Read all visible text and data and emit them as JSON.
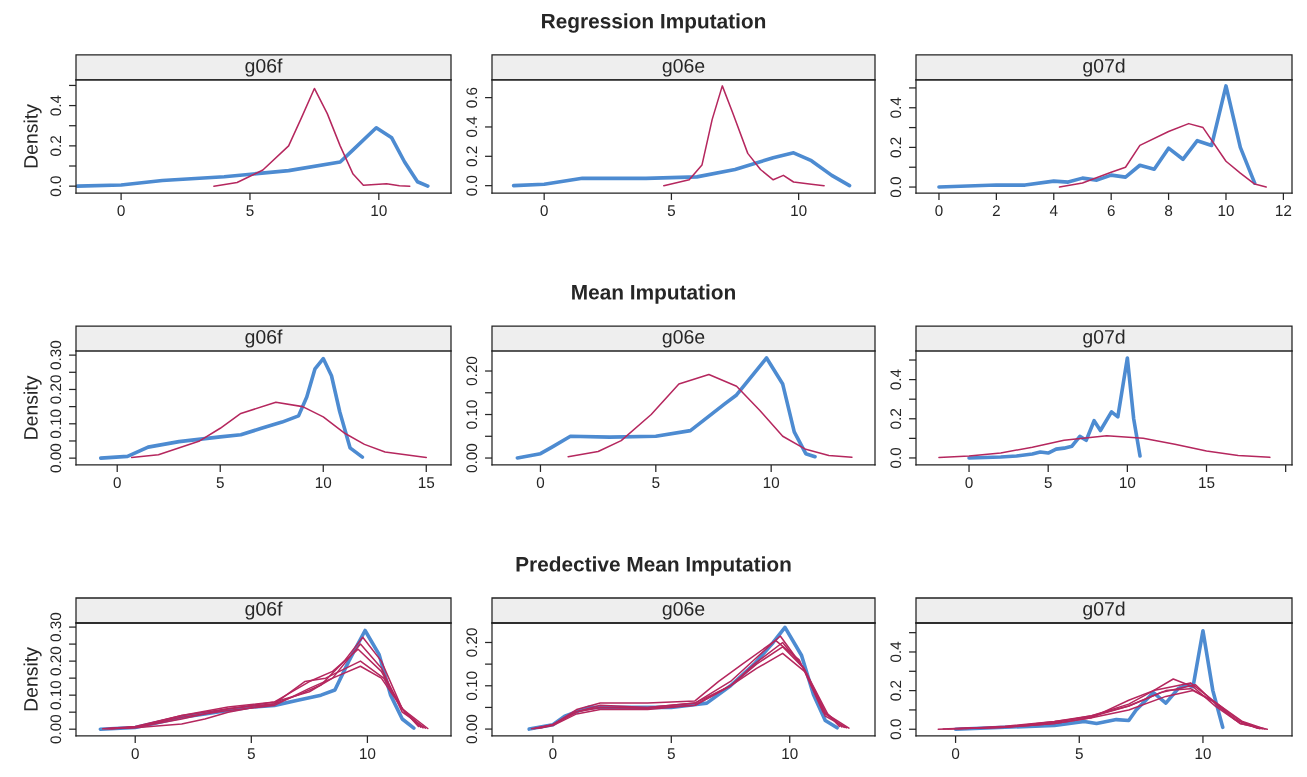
{
  "chart_data": [
    {
      "type": "line",
      "title": "g06f",
      "ylabel": "Density",
      "xlim": [
        -1.75,
        12.8
      ],
      "ylim": [
        -0.034,
        0.527
      ],
      "xticks": [
        0,
        5,
        10
      ],
      "yticks": [
        {
          "value": 0,
          "label": "0.0"
        },
        {
          "value": 0.1,
          "label": null
        },
        0.2,
        {
          "value": 0.3,
          "label": null
        },
        0.4,
        {
          "value": 0.5,
          "label": null
        }
      ],
      "series": [
        {
          "color": "#4d8bd1",
          "x": [
            -1.7,
            0,
            1.6,
            4,
            6.5,
            8.5,
            9,
            9.9,
            10.5,
            11,
            11.5,
            11.9
          ],
          "values": [
            0,
            0.006,
            0.028,
            0.047,
            0.077,
            0.12,
            0.18,
            0.29,
            0.24,
            0.12,
            0.022,
            0
          ]
        },
        {
          "color": "#b5275e",
          "x": [
            3.6,
            4.5,
            5.5,
            6.5,
            7,
            7.5,
            8,
            8.5,
            9,
            9.4,
            10.3,
            10.8,
            11.2
          ],
          "values": [
            0,
            0.018,
            0.08,
            0.2,
            0.34,
            0.485,
            0.36,
            0.2,
            0.06,
            0.004,
            0.012,
            0.002,
            0
          ]
        }
      ]
    },
    {
      "type": "line",
      "subtitle": "Regression Imputation",
      "title": "g06e",
      "xlim": [
        -2.05,
        13.0
      ],
      "ylim": [
        -0.05,
        0.72
      ],
      "xticks": [
        0,
        5,
        10
      ],
      "yticks": [
        {
          "value": 0,
          "label": "0.0"
        },
        0.2,
        0.4,
        0.6
      ],
      "series": [
        {
          "color": "#4d8bd1",
          "x": [
            -1.2,
            0,
            1.5,
            4,
            6,
            7.5,
            9,
            9.8,
            10.5,
            11.3,
            12
          ],
          "values": [
            0,
            0.01,
            0.05,
            0.05,
            0.06,
            0.11,
            0.19,
            0.224,
            0.17,
            0.07,
            0
          ]
        },
        {
          "color": "#b5275e",
          "x": [
            4.7,
            5.7,
            6.2,
            6.6,
            7,
            7.4,
            8,
            8.5,
            9,
            9.4,
            9.8,
            10.5,
            11
          ],
          "values": [
            0,
            0.04,
            0.14,
            0.45,
            0.68,
            0.5,
            0.22,
            0.11,
            0.04,
            0.07,
            0.025,
            0.01,
            0
          ]
        }
      ]
    },
    {
      "type": "line",
      "title": "g07d",
      "xlim": [
        -0.8,
        12.3
      ],
      "ylim": [
        -0.03,
        0.54
      ],
      "xticks": [
        0,
        2,
        4,
        6,
        8,
        10,
        12
      ],
      "yticks": [
        {
          "value": 0,
          "label": "0.0"
        },
        {
          "value": 0.1,
          "label": null
        },
        0.2,
        {
          "value": 0.3,
          "label": null
        },
        0.4,
        {
          "value": 0.5,
          "label": null
        }
      ],
      "series": [
        {
          "color": "#4d8bd1",
          "x": [
            0,
            2,
            3,
            4,
            4.5,
            5,
            5.5,
            6,
            6.5,
            7,
            7.5,
            8,
            8.5,
            9,
            9.5,
            10,
            10.5,
            11
          ],
          "values": [
            0,
            0.01,
            0.01,
            0.03,
            0.025,
            0.045,
            0.035,
            0.06,
            0.05,
            0.11,
            0.09,
            0.196,
            0.14,
            0.234,
            0.21,
            0.51,
            0.2,
            0.02
          ]
        },
        {
          "color": "#b5275e",
          "x": [
            4.2,
            5,
            6,
            6.5,
            7,
            8,
            8.7,
            9.2,
            10,
            10.5,
            11,
            11.4
          ],
          "values": [
            0,
            0.02,
            0.075,
            0.1,
            0.21,
            0.28,
            0.32,
            0.3,
            0.13,
            0.07,
            0.015,
            0
          ]
        }
      ]
    },
    {
      "type": "line",
      "title": "g06f",
      "ylabel": "Density",
      "xlim": [
        -2.0,
        16.2
      ],
      "ylim": [
        -0.02,
        0.312
      ],
      "xticks": [
        0,
        5,
        10,
        15
      ],
      "yticks": [
        {
          "value": 0,
          "label": "0.00"
        },
        {
          "value": 0.05,
          "label": null
        },
        {
          "value": 0.1,
          "label": "0.10"
        },
        {
          "value": 0.15,
          "label": null
        },
        {
          "value": 0.2,
          "label": "0.20"
        },
        {
          "value": 0.25,
          "label": null
        },
        {
          "value": 0.3,
          "label": "0.30"
        }
      ],
      "series": [
        {
          "color": "#4d8bd1",
          "x": [
            -0.8,
            0.5,
            1.5,
            3,
            5,
            6,
            7,
            8,
            8.8,
            9.2,
            9.6,
            10,
            10.4,
            10.8,
            11.3,
            11.9
          ],
          "values": [
            0,
            0.005,
            0.032,
            0.048,
            0.062,
            0.068,
            0.087,
            0.105,
            0.123,
            0.178,
            0.26,
            0.29,
            0.24,
            0.135,
            0.03,
            0.003
          ]
        },
        {
          "color": "#b5275e",
          "x": [
            0.7,
            2,
            4,
            5,
            6,
            7.7,
            9,
            10,
            11,
            12,
            13,
            15
          ],
          "values": [
            0.002,
            0.01,
            0.05,
            0.087,
            0.13,
            0.163,
            0.15,
            0.12,
            0.074,
            0.04,
            0.018,
            0.002
          ]
        }
      ]
    },
    {
      "type": "line",
      "subtitle": "Mean Imputation",
      "title": "g06e",
      "xlim": [
        -2.1,
        14.5
      ],
      "ylim": [
        -0.016,
        0.246
      ],
      "xticks": [
        0,
        5,
        10
      ],
      "yticks": [
        {
          "value": 0,
          "label": "0.00"
        },
        {
          "value": 0.05,
          "label": null
        },
        {
          "value": 0.1,
          "label": "0.10"
        },
        {
          "value": 0.15,
          "label": null
        },
        {
          "value": 0.2,
          "label": "0.20"
        }
      ],
      "series": [
        {
          "color": "#4d8bd1",
          "x": [
            -1,
            0,
            0.5,
            1.3,
            3,
            5,
            6.5,
            8,
            8.5,
            9.8,
            10.5,
            11,
            11.5,
            11.9
          ],
          "values": [
            0,
            0.01,
            0.025,
            0.05,
            0.048,
            0.05,
            0.063,
            0.125,
            0.145,
            0.23,
            0.17,
            0.06,
            0.01,
            0.003
          ]
        },
        {
          "color": "#b5275e",
          "x": [
            1.2,
            2.5,
            3.5,
            4.8,
            6,
            7.3,
            8.5,
            9.5,
            10.5,
            11.5,
            12.5,
            13.5
          ],
          "values": [
            0.003,
            0.015,
            0.04,
            0.1,
            0.17,
            0.192,
            0.165,
            0.11,
            0.05,
            0.02,
            0.006,
            0.002
          ]
        }
      ]
    },
    {
      "type": "line",
      "title": "g07d",
      "xlim": [
        -3.35,
        20.4
      ],
      "ylim": [
        -0.036,
        0.546
      ],
      "xticks": [
        0,
        5,
        10,
        15,
        {
          "value": 20,
          "label": null
        }
      ],
      "yticks": [
        {
          "value": 0,
          "label": "0.0"
        },
        {
          "value": 0.1,
          "label": null
        },
        0.2,
        {
          "value": 0.3,
          "label": null
        },
        0.4,
        {
          "value": 0.5,
          "label": null
        }
      ],
      "series": [
        {
          "color": "#4d8bd1",
          "x": [
            0,
            2,
            3,
            4,
            4.5,
            5,
            5.5,
            6,
            6.5,
            7,
            7.4,
            7.9,
            8.3,
            9,
            9.4,
            10,
            10.4,
            10.8
          ],
          "values": [
            0,
            0.005,
            0.01,
            0.02,
            0.03,
            0.025,
            0.045,
            0.05,
            0.06,
            0.11,
            0.09,
            0.19,
            0.14,
            0.235,
            0.21,
            0.51,
            0.2,
            0.01
          ]
        },
        {
          "color": "#b5275e",
          "x": [
            -1.9,
            0,
            2,
            4,
            6,
            8.7,
            11,
            13,
            15,
            17,
            19
          ],
          "values": [
            0.002,
            0.01,
            0.025,
            0.055,
            0.09,
            0.113,
            0.1,
            0.07,
            0.035,
            0.012,
            0.003
          ]
        }
      ]
    },
    {
      "type": "line",
      "title": "g06f",
      "ylabel": "Density",
      "xlim": [
        -2.55,
        13.6
      ],
      "ylim": [
        -0.02,
        0.312
      ],
      "xticks": [
        0,
        5,
        10
      ],
      "yticks": [
        {
          "value": 0,
          "label": "0.00"
        },
        {
          "value": 0.05,
          "label": null
        },
        {
          "value": 0.1,
          "label": "0.10"
        },
        {
          "value": 0.15,
          "label": null
        },
        {
          "value": 0.2,
          "label": "0.20"
        },
        {
          "value": 0.25,
          "label": null
        },
        {
          "value": 0.3,
          "label": "0.30"
        }
      ],
      "series": [
        {
          "color": "#4d8bd1",
          "x": [
            -1.5,
            0,
            1,
            2,
            3,
            4,
            5,
            6,
            7,
            8,
            8.6,
            9.2,
            9.9,
            10.5,
            11,
            11.5,
            12
          ],
          "values": [
            0,
            0.005,
            0.02,
            0.035,
            0.045,
            0.055,
            0.065,
            0.07,
            0.085,
            0.1,
            0.115,
            0.2,
            0.29,
            0.22,
            0.1,
            0.03,
            0.003
          ]
        },
        {
          "color": "#b5275e",
          "x": [
            -1.4,
            0,
            2,
            4,
            6,
            7,
            8,
            9,
            9.8,
            10.6,
            11.5,
            12.6
          ],
          "values": [
            0.001,
            0.008,
            0.04,
            0.06,
            0.075,
            0.1,
            0.13,
            0.2,
            0.27,
            0.2,
            0.06,
            0.002
          ]
        },
        {
          "color": "#b5275e",
          "x": [
            -1.3,
            0,
            2,
            4,
            6,
            7.5,
            8.5,
            9.7,
            10.6,
            11.5,
            12.5
          ],
          "values": [
            0.001,
            0.006,
            0.035,
            0.055,
            0.07,
            0.12,
            0.15,
            0.25,
            0.18,
            0.05,
            0.003
          ]
        },
        {
          "color": "#b5275e",
          "x": [
            -1.2,
            0,
            2,
            4,
            6,
            7.5,
            8.5,
            9.6,
            10.6,
            11.5,
            12.4
          ],
          "values": [
            0.001,
            0.005,
            0.03,
            0.06,
            0.08,
            0.14,
            0.17,
            0.235,
            0.17,
            0.06,
            0.004
          ]
        },
        {
          "color": "#b5275e",
          "x": [
            -1.1,
            0,
            2,
            3,
            4,
            6,
            7.3,
            8.2,
            9.7,
            10.7,
            11.6,
            12.3
          ],
          "values": [
            0.001,
            0.004,
            0.015,
            0.03,
            0.05,
            0.075,
            0.14,
            0.15,
            0.2,
            0.15,
            0.05,
            0.006
          ]
        },
        {
          "color": "#b5275e",
          "x": [
            -1.0,
            0,
            2,
            4,
            6,
            7.5,
            8.5,
            9.7,
            10.6,
            11.5,
            12.2
          ],
          "values": [
            0.002,
            0.006,
            0.04,
            0.065,
            0.08,
            0.11,
            0.15,
            0.185,
            0.15,
            0.06,
            0.008
          ]
        }
      ]
    },
    {
      "type": "line",
      "subtitle": "Predective Mean Imputation",
      "title": "g06e",
      "xlim": [
        -2.57,
        13.6
      ],
      "ylim": [
        -0.016,
        0.245
      ],
      "xticks": [
        0,
        5,
        10
      ],
      "yticks": [
        {
          "value": 0,
          "label": "0.00"
        },
        {
          "value": 0.05,
          "label": null
        },
        {
          "value": 0.1,
          "label": "0.10"
        },
        {
          "value": 0.15,
          "label": null
        },
        {
          "value": 0.2,
          "label": "0.20"
        }
      ],
      "series": [
        {
          "color": "#4d8bd1",
          "x": [
            -1,
            0,
            0.5,
            1.5,
            3,
            5,
            6.5,
            7.5,
            8.5,
            9.3,
            9.8,
            10.5,
            11,
            11.5,
            12
          ],
          "values": [
            0,
            0.01,
            0.03,
            0.05,
            0.05,
            0.05,
            0.06,
            0.1,
            0.15,
            0.2,
            0.235,
            0.17,
            0.08,
            0.02,
            0.003
          ]
        },
        {
          "color": "#b5275e",
          "x": [
            -0.9,
            0,
            1,
            2,
            4,
            6,
            7,
            8,
            9.4,
            10.4,
            11.4,
            12.5
          ],
          "values": [
            0.001,
            0.01,
            0.045,
            0.06,
            0.06,
            0.065,
            0.11,
            0.15,
            0.205,
            0.16,
            0.04,
            0.002
          ]
        },
        {
          "color": "#b5275e",
          "x": [
            -0.8,
            0,
            1,
            2,
            4,
            6,
            7.5,
            8.5,
            9.6,
            10.6,
            11.5,
            12.4
          ],
          "values": [
            0.001,
            0.01,
            0.04,
            0.055,
            0.05,
            0.06,
            0.11,
            0.16,
            0.215,
            0.14,
            0.03,
            0.003
          ]
        },
        {
          "color": "#b5275e",
          "x": [
            -0.7,
            0,
            1,
            2,
            4,
            6,
            7.5,
            8.5,
            9.7,
            10.6,
            11.5,
            12.3
          ],
          "values": [
            0.002,
            0.01,
            0.04,
            0.05,
            0.048,
            0.055,
            0.1,
            0.15,
            0.2,
            0.14,
            0.035,
            0.004
          ]
        },
        {
          "color": "#b5275e",
          "x": [
            -0.6,
            0,
            1,
            2,
            4,
            6,
            7.5,
            8.6,
            9.7,
            10.6,
            11.5,
            12.2
          ],
          "values": [
            0.002,
            0.008,
            0.035,
            0.045,
            0.045,
            0.055,
            0.1,
            0.15,
            0.19,
            0.14,
            0.04,
            0.005
          ]
        },
        {
          "color": "#b5275e",
          "x": [
            -0.5,
            0,
            1,
            2,
            4,
            6,
            7.5,
            8.6,
            9.7,
            10.7,
            11.6,
            12.1
          ],
          "values": [
            0.003,
            0.01,
            0.04,
            0.05,
            0.05,
            0.06,
            0.1,
            0.14,
            0.175,
            0.13,
            0.035,
            0.006
          ]
        }
      ]
    },
    {
      "type": "line",
      "title": "g07d",
      "xlim": [
        -1.6,
        13.6
      ],
      "ylim": [
        -0.035,
        0.55
      ],
      "xticks": [
        0,
        5,
        10
      ],
      "yticks": [
        {
          "value": 0,
          "label": "0.0"
        },
        {
          "value": 0.1,
          "label": null
        },
        0.2,
        {
          "value": 0.3,
          "label": null
        },
        0.4,
        {
          "value": 0.5,
          "label": null
        }
      ],
      "series": [
        {
          "color": "#4d8bd1",
          "x": [
            0,
            2,
            4,
            5.2,
            5.7,
            6.5,
            7,
            7.3,
            8,
            8.5,
            9,
            9.36,
            9.6,
            10,
            10.4,
            10.8
          ],
          "values": [
            0,
            0.01,
            0.02,
            0.04,
            0.03,
            0.05,
            0.045,
            0.1,
            0.19,
            0.135,
            0.21,
            0.23,
            0.22,
            0.51,
            0.2,
            0.01
          ]
        },
        {
          "color": "#b5275e",
          "x": [
            -0.7,
            2,
            4,
            5.5,
            7,
            8,
            8.8,
            9.6,
            10.5,
            11.5,
            12.6
          ],
          "values": [
            0,
            0.01,
            0.04,
            0.07,
            0.13,
            0.2,
            0.26,
            0.22,
            0.12,
            0.03,
            0
          ]
        },
        {
          "color": "#b5275e",
          "x": [
            -0.5,
            2,
            4,
            5.5,
            7,
            8,
            9.5,
            10.3,
            11.3,
            12.3
          ],
          "values": [
            0.001,
            0.01,
            0.03,
            0.06,
            0.15,
            0.2,
            0.24,
            0.16,
            0.05,
            0.003
          ]
        },
        {
          "color": "#b5275e",
          "x": [
            -0.3,
            2,
            4,
            5.5,
            7,
            8.3,
            9.7,
            10.6,
            11.5,
            12.4
          ],
          "values": [
            0.002,
            0.012,
            0.035,
            0.07,
            0.12,
            0.19,
            0.23,
            0.12,
            0.03,
            0.002
          ]
        },
        {
          "color": "#b5275e",
          "x": [
            0.1,
            2,
            4,
            5.5,
            7,
            8.5,
            9.5,
            10.5,
            11.5,
            12.2
          ],
          "values": [
            0.003,
            0.015,
            0.04,
            0.065,
            0.12,
            0.2,
            0.21,
            0.14,
            0.04,
            0.005
          ]
        },
        {
          "color": "#b5275e",
          "x": [
            0.4,
            2,
            4,
            5.5,
            7,
            8.5,
            9.6,
            10.6,
            11.6,
            12.5
          ],
          "values": [
            0.004,
            0.01,
            0.03,
            0.06,
            0.1,
            0.17,
            0.2,
            0.13,
            0.04,
            0.001
          ]
        }
      ]
    }
  ]
}
